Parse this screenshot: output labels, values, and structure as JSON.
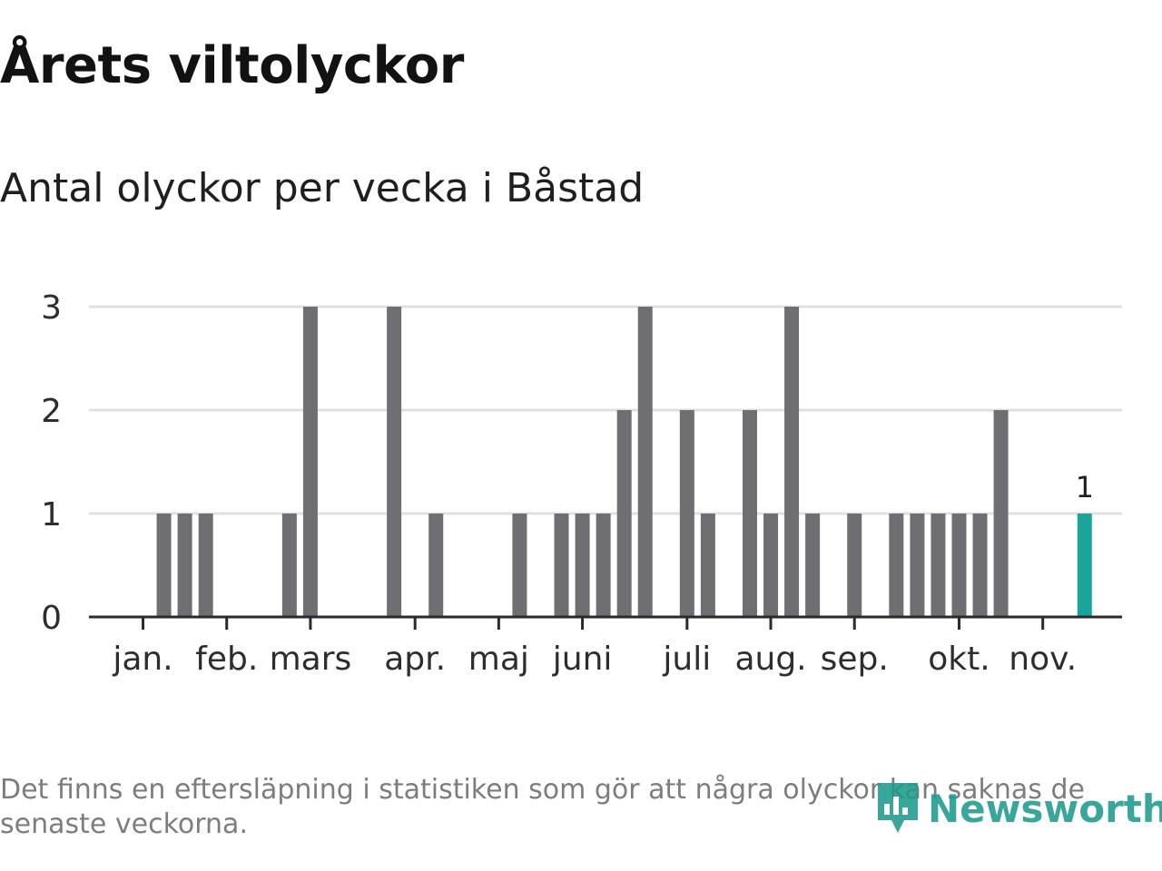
{
  "title": "Årets viltolyckor",
  "subtitle": "Antal olyckor per vecka i Båstad",
  "footnote": "Det finns en eftersläpning i statistiken som gör att några olyckor kan saknas de senaste veckorna.",
  "brand": {
    "name": "Newsworthy",
    "icon": "newsworthy-logo-icon"
  },
  "colors": {
    "bar": "#6f6e73",
    "highlight": "#1aa59a",
    "grid": "#e0e0e0",
    "axis": "#2a2a2a"
  },
  "chart_data": {
    "type": "bar",
    "title": "Antal olyckor per vecka i Båstad",
    "xlabel": "",
    "ylabel": "",
    "ylim": [
      0,
      3
    ],
    "yticks": [
      0,
      1,
      2,
      3
    ],
    "months": [
      "jan.",
      "feb.",
      "mars",
      "apr.",
      "maj",
      "juni",
      "juli",
      "aug.",
      "sep.",
      "okt.",
      "nov."
    ],
    "month_start_weeks": [
      1,
      5,
      9,
      14,
      18,
      22,
      27,
      31,
      35,
      40,
      44
    ],
    "weeks": [
      1,
      2,
      3,
      4,
      5,
      6,
      7,
      8,
      9,
      10,
      11,
      12,
      13,
      14,
      15,
      16,
      17,
      18,
      19,
      20,
      21,
      22,
      23,
      24,
      25,
      26,
      27,
      28,
      29,
      30,
      31,
      32,
      33,
      34,
      35,
      36,
      37,
      38,
      39,
      40,
      41,
      42,
      43,
      44,
      45,
      46
    ],
    "values": [
      0,
      1,
      1,
      1,
      0,
      0,
      0,
      1,
      3,
      0,
      0,
      0,
      3,
      0,
      1,
      0,
      0,
      0,
      1,
      0,
      1,
      1,
      1,
      2,
      3,
      0,
      2,
      1,
      0,
      2,
      1,
      3,
      1,
      0,
      1,
      0,
      1,
      1,
      1,
      1,
      1,
      2,
      0,
      0,
      0,
      1
    ],
    "highlight_week": 46,
    "highlight_label": "1"
  }
}
